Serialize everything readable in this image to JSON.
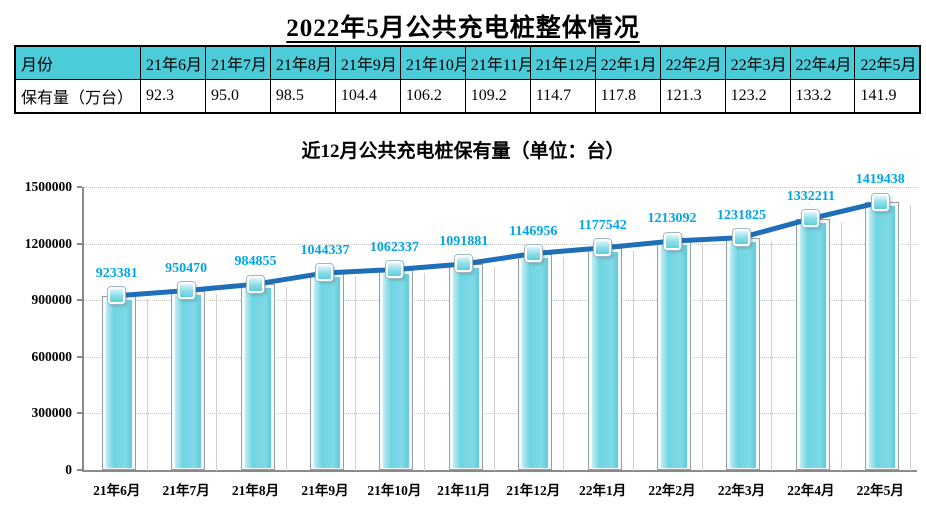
{
  "page": {
    "title": "2022年5月公共充电桩整体情况"
  },
  "table": {
    "header": [
      "月份",
      "21年6月",
      "21年7月",
      "21年8月",
      "21年9月",
      "21年10月",
      "21年11月",
      "21年12月",
      "22年1月",
      "22年2月",
      "22年3月",
      "22年4月",
      "22年5月"
    ],
    "row_label": "保有量（万台）",
    "values": [
      "92.3",
      "95.0",
      "98.5",
      "104.4",
      "106.2",
      "109.2",
      "114.7",
      "117.8",
      "121.3",
      "123.2",
      "133.2",
      "141.9"
    ],
    "header_bg": "#4CCBD9"
  },
  "chart_data": {
    "type": "bar",
    "subtype": "bar-with-line-overlay",
    "title": "近12月公共充电桩保有量（单位：台）",
    "categories": [
      "21年6月",
      "21年7月",
      "21年8月",
      "21年9月",
      "21年10月",
      "21年11月",
      "21年12月",
      "22年1月",
      "22年2月",
      "22年3月",
      "22年4月",
      "22年5月"
    ],
    "values": [
      923381,
      950470,
      984855,
      1044337,
      1062337,
      1091881,
      1146956,
      1177542,
      1213092,
      1231825,
      1332211,
      1419438
    ],
    "xlabel": "",
    "ylabel": "",
    "ylim": [
      0,
      1500000
    ],
    "yticks": [
      0,
      300000,
      600000,
      900000,
      1200000,
      1500000
    ],
    "grid": true,
    "legend": "none",
    "bar_color": "#7fd9e6",
    "line_color": "#1E6FB8",
    "label_color": "#00A5E6"
  }
}
